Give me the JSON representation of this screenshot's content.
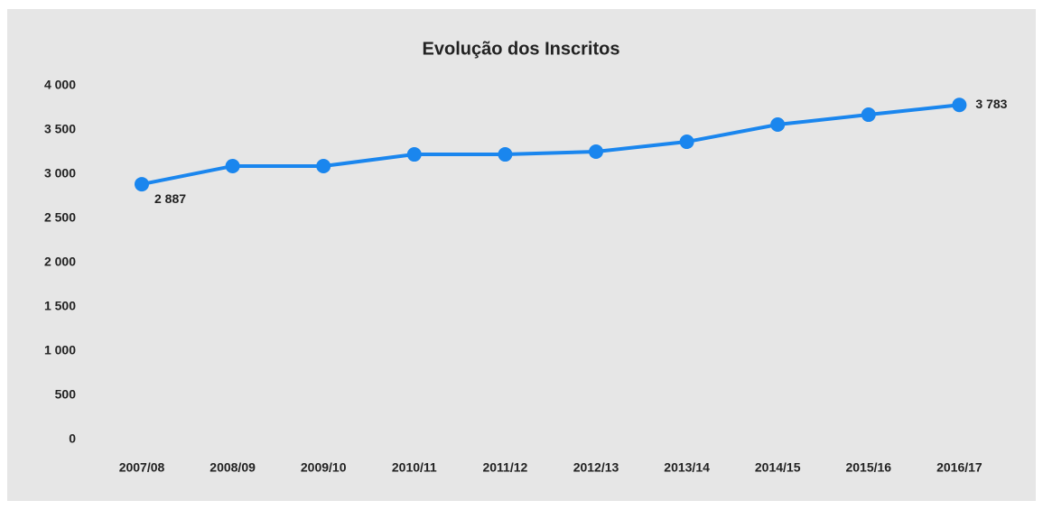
{
  "chart_data": {
    "type": "line",
    "title": "Evolução dos Inscritos",
    "categories": [
      "2007/08",
      "2008/09",
      "2009/10",
      "2010/11",
      "2011/12",
      "2012/13",
      "2013/14",
      "2014/15",
      "2015/16",
      "2016/17"
    ],
    "series": [
      {
        "name": "Inscritos",
        "color": "#1a86ee",
        "values": [
          2887,
          3092,
          3092,
          3224,
          3224,
          3255,
          3367,
          3561,
          3673,
          3783
        ],
        "value_labels": [
          "2 887",
          null,
          null,
          null,
          null,
          null,
          null,
          null,
          null,
          "3 783"
        ]
      }
    ],
    "ylim": [
      0,
      4000
    ],
    "yticks": [
      0,
      500,
      {
        "value": 1000,
        "label": "1 000"
      },
      {
        "value": 1500,
        "label": "1 500"
      },
      {
        "value": 2000,
        "label": "2 000"
      },
      {
        "value": 2500,
        "label": "2 500"
      },
      {
        "value": 3000,
        "label": "3 000"
      },
      {
        "value": 3500,
        "label": "3 500"
      },
      {
        "value": 4000,
        "label": "4 000"
      }
    ],
    "grid": false,
    "legend": false
  }
}
